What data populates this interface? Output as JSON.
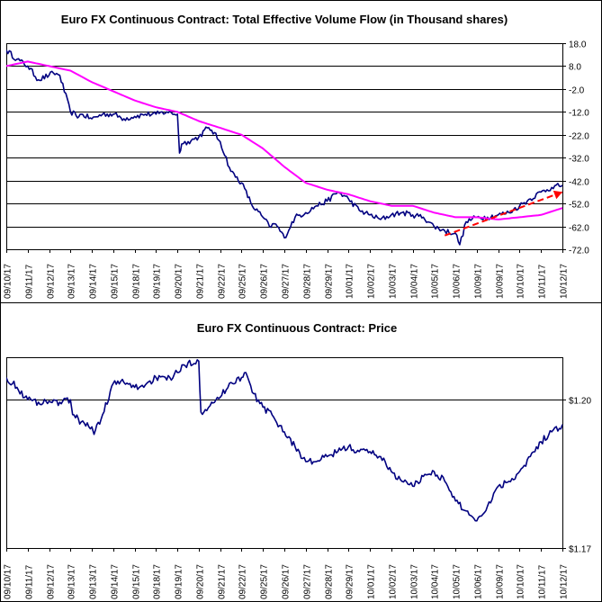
{
  "chart_data": [
    {
      "type": "line",
      "title": "Euro FX Continuous Contract: Total Effective Volume Flow (in Thousand shares)",
      "ylim": [
        -72,
        18
      ],
      "yticks": [
        "18.0",
        "8.0",
        "-2.0",
        "-12.0",
        "-22.0",
        "-32.0",
        "-42.0",
        "-52.0",
        "-62.0",
        "-72.0"
      ],
      "ytick_values": [
        18,
        8,
        -2,
        -12,
        -22,
        -32,
        -42,
        -52,
        -62,
        -72
      ],
      "y_axis_side": "right",
      "grid": "horizontal",
      "categories": [
        "09/10/17",
        "09/11/17",
        "09/12/17",
        "09/13/17",
        "09/14/17",
        "09/15/17",
        "09/18/17",
        "09/19/17",
        "09/20/17",
        "09/21/17",
        "09/22/17",
        "09/25/17",
        "09/26/17",
        "09/27/17",
        "09/28/17",
        "09/29/17",
        "10/01/17",
        "10/02/17",
        "10/03/17",
        "10/04/17",
        "10/05/17",
        "10/06/17",
        "10/09/17",
        "10/09/17",
        "10/10/17",
        "10/11/17",
        "10/12/17"
      ],
      "series": [
        {
          "color": "#000080",
          "x": [
            0,
            0.5,
            1,
            1.5,
            2,
            2.2,
            2.5,
            3,
            3.4,
            3.5,
            4,
            4.5,
            5,
            5.5,
            6,
            6.5,
            7,
            7.5,
            8,
            8.1,
            8.2,
            8.5,
            9,
            9.4,
            9.6,
            10,
            10.5,
            11,
            11.5,
            12,
            12.3,
            12.6,
            13,
            13.5,
            14,
            14.5,
            15,
            15.5,
            16,
            16.5,
            17,
            17.5,
            18,
            18.5,
            19,
            19.5,
            20,
            20.5,
            21,
            21.2,
            21.5,
            22,
            22.5,
            23,
            23.5,
            24,
            24.5,
            25,
            25.5,
            26
          ],
          "values": [
            15,
            11,
            8,
            2,
            4,
            5,
            4,
            -12,
            -14,
            -13,
            -15,
            -13,
            -13,
            -15,
            -14,
            -13,
            -13,
            -12,
            -13,
            -30,
            -26,
            -25,
            -23,
            -19,
            -20,
            -25,
            -38,
            -43,
            -53,
            -58,
            -62,
            -61,
            -67,
            -58,
            -56,
            -53,
            -51,
            -47,
            -50,
            -55,
            -57,
            -59,
            -57,
            -56,
            -57,
            -58,
            -62,
            -64,
            -65,
            -70,
            -60,
            -58,
            -58,
            -57,
            -56,
            -53,
            -50,
            -47,
            -45,
            -44
          ]
        },
        {
          "color": "#ff00ff",
          "x": [
            0,
            1,
            2,
            3,
            4,
            5,
            6,
            7,
            8,
            9,
            10,
            11,
            12,
            13,
            14,
            15,
            16,
            17,
            18,
            19,
            20,
            20.5,
            21,
            22,
            23,
            24,
            25,
            26
          ],
          "values": [
            8,
            10,
            8,
            6,
            1,
            -3,
            -7,
            -10,
            -12,
            -16,
            -19,
            -22,
            -28,
            -36,
            -43,
            -46,
            -48,
            -51,
            -53,
            -53,
            -56,
            -57,
            -58,
            -58,
            -59,
            -58,
            -57,
            -54
          ]
        },
        {
          "color": "#ff0000",
          "style": "dashed arrow",
          "x": [
            20.5,
            26
          ],
          "values": [
            -66,
            -47
          ]
        }
      ]
    },
    {
      "type": "line",
      "title": "Euro FX Continuous Contract: Price",
      "ylim": [
        1.17,
        1.2086
      ],
      "yticks": [
        "$1.20",
        "$1.17"
      ],
      "ytick_values": [
        1.2,
        1.17
      ],
      "y_axis_side": "right",
      "grid": "horizontal",
      "categories": [
        "09/10/17",
        "09/11/17",
        "09/12/17",
        "09/13/17",
        "09/13/17",
        "09/14/17",
        "09/15/17",
        "09/18/17",
        "09/19/17",
        "09/20/17",
        "09/21/17",
        "09/22/17",
        "09/25/17",
        "09/26/17",
        "09/27/17",
        "09/28/17",
        "09/29/17",
        "10/01/17",
        "10/02/17",
        "10/03/17",
        "10/04/17",
        "10/05/17",
        "10/06/17",
        "10/09/17",
        "10/10/17",
        "10/11/17",
        "10/12/17"
      ],
      "series": [
        {
          "color": "#000080",
          "x": [
            0,
            0.5,
            1,
            1.5,
            2,
            2.5,
            3,
            3.1,
            3.5,
            4,
            4.1,
            4.5,
            5,
            5.5,
            6,
            6.5,
            7,
            7.5,
            8,
            8.5,
            9,
            9.1,
            9.3,
            9.6,
            10,
            10.5,
            11,
            11.2,
            11.5,
            12,
            12.5,
            13,
            13.5,
            14,
            14.5,
            15,
            15.5,
            16,
            16.5,
            17,
            17.5,
            18,
            18.5,
            19,
            19.5,
            20,
            20.5,
            21,
            21.5,
            22,
            22.5,
            23,
            23.5,
            24,
            24.5,
            25,
            25.5,
            26
          ],
          "values": [
            1.2045,
            1.2025,
            1.2,
            1.1995,
            1.1997,
            1.1995,
            1.2,
            1.197,
            1.1955,
            1.1945,
            1.193,
            1.197,
            1.2033,
            1.2035,
            1.2025,
            1.203,
            1.2045,
            1.204,
            1.2055,
            1.2075,
            1.2078,
            1.1975,
            1.198,
            1.1995,
            1.2005,
            1.2035,
            1.2045,
            1.2055,
            1.2015,
            1.1985,
            1.1965,
            1.1935,
            1.1905,
            1.1875,
            1.1875,
            1.1885,
            1.1895,
            1.1905,
            1.1895,
            1.1895,
            1.1885,
            1.1855,
            1.1835,
            1.1825,
            1.1845,
            1.1855,
            1.1835,
            1.1795,
            1.1775,
            1.1755,
            1.1785,
            1.1825,
            1.1835,
            1.1855,
            1.1885,
            1.1915,
            1.1935,
            1.195
          ]
        }
      ]
    }
  ]
}
